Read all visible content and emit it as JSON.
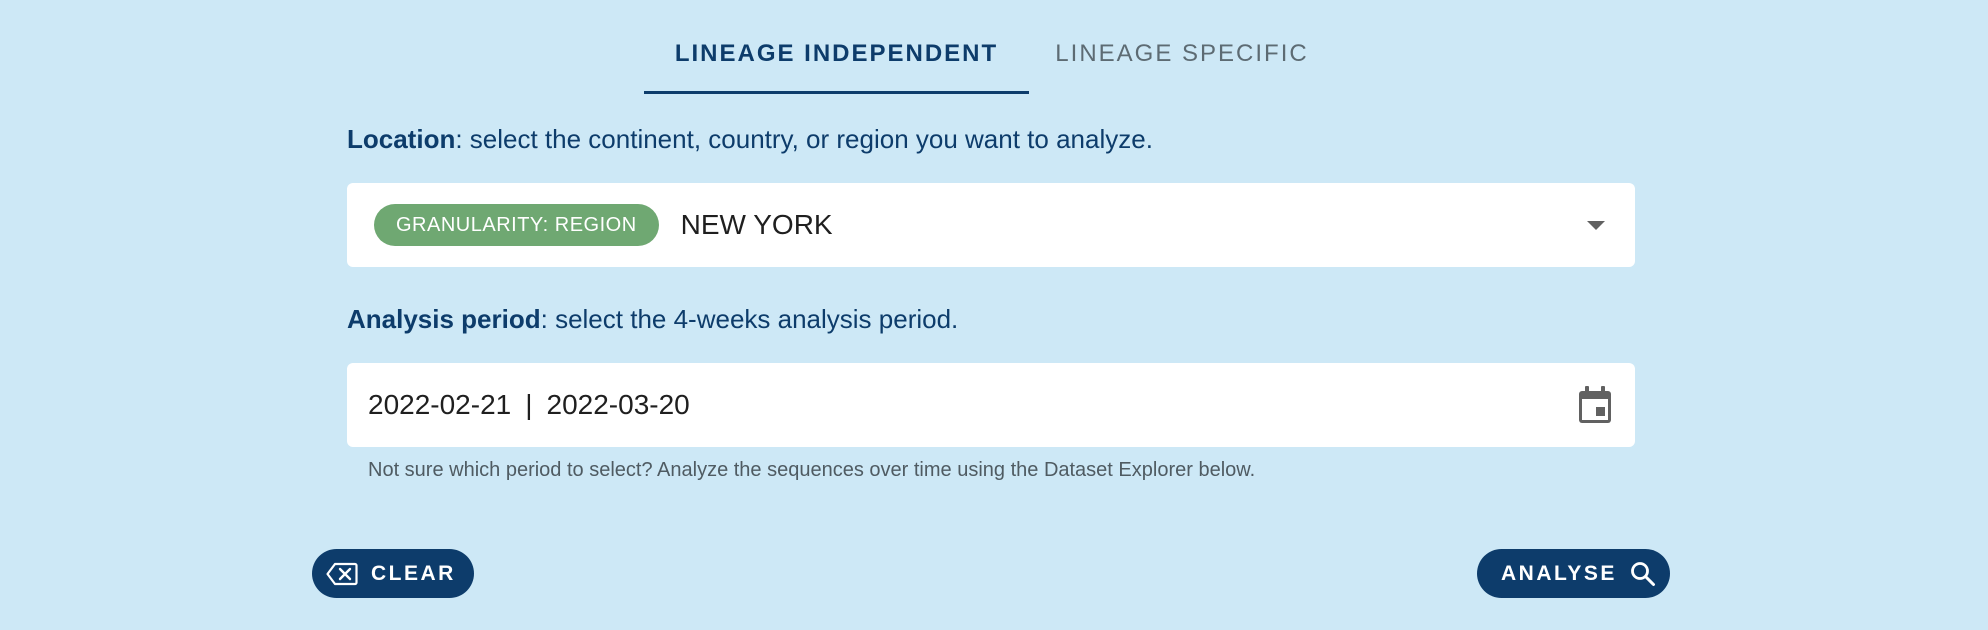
{
  "tabs": [
    {
      "label": "LINEAGE INDEPENDENT",
      "active": true
    },
    {
      "label": "LINEAGE SPECIFIC",
      "active": false
    }
  ],
  "location": {
    "label_bold": "Location",
    "label_rest": ": select the continent, country, or region you want to analyze.",
    "chip": "GRANULARITY: REGION",
    "value": "NEW YORK"
  },
  "period": {
    "label_bold": "Analysis period",
    "label_rest": ": select the 4-weeks analysis period.",
    "start": "2022-02-21",
    "separator": "|",
    "end": "2022-03-20",
    "hint": "Not sure which period to select? Analyze the sequences over time using the Dataset Explorer below."
  },
  "buttons": {
    "clear": "CLEAR",
    "analyse": "ANALYSE"
  },
  "icons": {
    "clear": "backspace-icon",
    "analyse": "search-icon",
    "dropdown": "caret-down-icon",
    "calendar": "calendar-icon"
  },
  "colors": {
    "background": "#cde8f6",
    "primary": "#0d3c6b",
    "chip": "#6fa872"
  }
}
